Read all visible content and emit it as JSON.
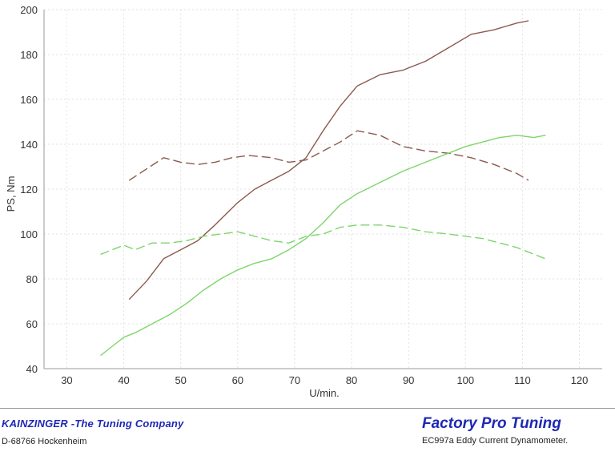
{
  "chart_data": {
    "type": "line",
    "xlabel": "U/min.",
    "ylabel": "PS, Nm",
    "xlim": [
      26,
      124
    ],
    "ylim": [
      40,
      200
    ],
    "x_ticks": [
      30,
      40,
      50,
      60,
      70,
      80,
      90,
      100,
      110,
      120
    ],
    "y_ticks": [
      40,
      60,
      80,
      100,
      120,
      140,
      160,
      180,
      200
    ],
    "grid": true,
    "series": [
      {
        "color": "#8b5a4f",
        "dash": "solid",
        "points": [
          [
            41,
            71
          ],
          [
            44,
            79
          ],
          [
            47,
            89
          ],
          [
            50,
            93
          ],
          [
            53,
            97
          ],
          [
            56,
            104
          ],
          [
            60,
            114
          ],
          [
            63,
            120
          ],
          [
            66,
            124
          ],
          [
            69,
            128
          ],
          [
            72,
            134
          ],
          [
            75,
            146
          ],
          [
            78,
            157
          ],
          [
            81,
            166
          ],
          [
            85,
            171
          ],
          [
            89,
            173
          ],
          [
            93,
            177
          ],
          [
            97,
            183
          ],
          [
            101,
            189
          ],
          [
            105,
            191
          ],
          [
            109,
            194
          ],
          [
            111,
            195
          ]
        ]
      },
      {
        "color": "#8b5a4f",
        "dash": "dashed",
        "points": [
          [
            41,
            124
          ],
          [
            44,
            129
          ],
          [
            47,
            134
          ],
          [
            50,
            132
          ],
          [
            53,
            131
          ],
          [
            56,
            132
          ],
          [
            59,
            134
          ],
          [
            62,
            135
          ],
          [
            66,
            134
          ],
          [
            69,
            132
          ],
          [
            72,
            133
          ],
          [
            75,
            137
          ],
          [
            78,
            141
          ],
          [
            81,
            146
          ],
          [
            85,
            144
          ],
          [
            89,
            139
          ],
          [
            93,
            137
          ],
          [
            97,
            136
          ],
          [
            101,
            134
          ],
          [
            105,
            131
          ],
          [
            109,
            127
          ],
          [
            111,
            124
          ]
        ]
      },
      {
        "color": "#7ed56b",
        "dash": "solid",
        "points": [
          [
            36,
            46
          ],
          [
            38,
            50
          ],
          [
            40,
            54
          ],
          [
            42,
            56
          ],
          [
            45,
            60
          ],
          [
            48,
            64
          ],
          [
            51,
            69
          ],
          [
            54,
            75
          ],
          [
            57,
            80
          ],
          [
            60,
            84
          ],
          [
            63,
            87
          ],
          [
            66,
            89
          ],
          [
            69,
            93
          ],
          [
            72,
            98
          ],
          [
            75,
            105
          ],
          [
            78,
            113
          ],
          [
            81,
            118
          ],
          [
            85,
            123
          ],
          [
            89,
            128
          ],
          [
            93,
            132
          ],
          [
            97,
            136
          ],
          [
            100,
            139
          ],
          [
            103,
            141
          ],
          [
            106,
            143
          ],
          [
            109,
            144
          ],
          [
            112,
            143
          ],
          [
            114,
            144
          ]
        ]
      },
      {
        "color": "#7ed56b",
        "dash": "dashed",
        "points": [
          [
            36,
            91
          ],
          [
            38,
            93
          ],
          [
            40,
            95
          ],
          [
            42,
            93
          ],
          [
            45,
            96
          ],
          [
            48,
            96
          ],
          [
            51,
            97
          ],
          [
            54,
            99
          ],
          [
            57,
            100
          ],
          [
            60,
            101
          ],
          [
            63,
            99
          ],
          [
            66,
            97
          ],
          [
            69,
            96
          ],
          [
            72,
            99
          ],
          [
            75,
            100
          ],
          [
            78,
            103
          ],
          [
            81,
            104
          ],
          [
            85,
            104
          ],
          [
            89,
            103
          ],
          [
            93,
            101
          ],
          [
            97,
            100
          ],
          [
            100,
            99
          ],
          [
            103,
            98
          ],
          [
            106,
            96
          ],
          [
            109,
            94
          ],
          [
            112,
            91
          ],
          [
            114,
            89
          ]
        ]
      }
    ]
  },
  "footer": {
    "left_title": "KAINZINGER  -The Tuning Company",
    "left_address": "D-68766 Hockenheim",
    "right_title": "Factory Pro Tuning",
    "right_subtitle": "EC997a  Eddy Current Dynamometer."
  }
}
